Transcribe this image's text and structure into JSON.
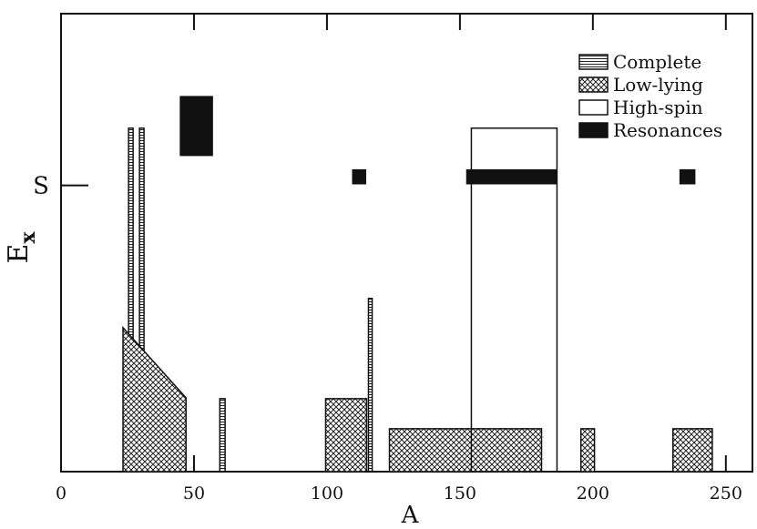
{
  "chart_data": {
    "type": "region",
    "xlabel": "A",
    "ylabel": "E",
    "ylabel_subscript": "x",
    "xlim": [
      0,
      260
    ],
    "xticks": [
      0,
      50,
      100,
      150,
      200,
      250
    ],
    "ylim": [
      0,
      1.6
    ],
    "yticks": [
      {
        "value": 1,
        "label": "S"
      }
    ],
    "legend": "upper right",
    "series": [
      {
        "name": "Complete",
        "pattern": "hlines",
        "regions": [
          {
            "x": [
              25.4,
              27.1
            ],
            "y": [
              0,
              1.2
            ]
          },
          {
            "x": [
              29.5,
              31.2
            ],
            "y": [
              0,
              1.2
            ]
          },
          {
            "x": [
              59.7,
              61.7
            ],
            "y": [
              0,
              0.255
            ]
          },
          {
            "x": [
              115.6,
              117
            ],
            "y": [
              0,
              0.605
            ]
          }
        ]
      },
      {
        "name": "Low-lying",
        "pattern": "crosshatch",
        "regions": [
          {
            "x": [
              23.3,
              23.3,
              47,
              47
            ],
            "y": [
              0,
              0.503,
              0.258,
              0
            ]
          },
          {
            "x": [
              99.5,
              114.9
            ],
            "y": [
              0,
              0.255
            ]
          },
          {
            "x": [
              123.5,
              180.7
            ],
            "y": [
              0,
              0.15
            ]
          },
          {
            "x": [
              195.5,
              200.6
            ],
            "y": [
              0,
              0.15
            ]
          },
          {
            "x": [
              230.1,
              244.9
            ],
            "y": [
              0,
              0.15
            ]
          }
        ]
      },
      {
        "name": "High-spin",
        "pattern": "open",
        "regions": [
          {
            "x": [
              154.3,
              186.5
            ],
            "y": [
              0,
              1.2
            ]
          }
        ]
      },
      {
        "name": "Resonances",
        "pattern": "solid",
        "regions": [
          {
            "x": [
              44.9,
              56.9
            ],
            "y": [
              1.105,
              1.31
            ]
          },
          {
            "x": [
              109.7,
              114.5
            ],
            "y": [
              1.006,
              1.054
            ]
          },
          {
            "x": [
              152.6,
              186.2
            ],
            "y": [
              1.006,
              1.054
            ]
          },
          {
            "x": [
              232.8,
              238.3
            ],
            "y": [
              1.006,
              1.054
            ]
          }
        ]
      }
    ]
  }
}
